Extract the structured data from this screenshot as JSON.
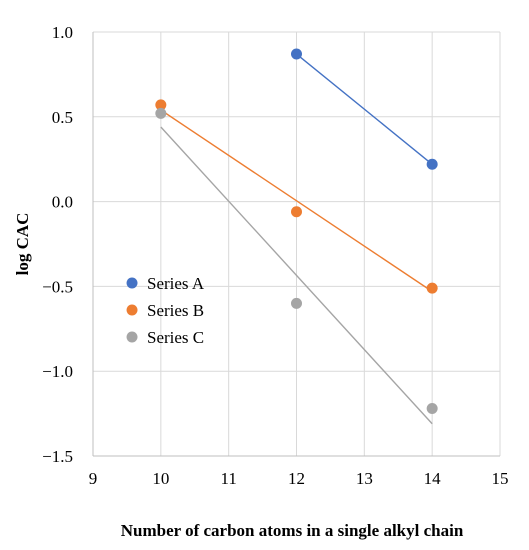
{
  "chart_data": {
    "type": "scatter",
    "xlabel": "Number of carbon atoms in a single alkyl chain",
    "ylabel": "log CAC",
    "xlim": [
      9,
      15
    ],
    "ylim": [
      -1.5,
      1.0
    ],
    "xticks": [
      9,
      10,
      11,
      12,
      13,
      14,
      15
    ],
    "yticks": [
      1.0,
      0.5,
      0.0,
      -0.5,
      -1.0,
      -1.5
    ],
    "xtick_labels": [
      "9",
      "10",
      "11",
      "12",
      "13",
      "14",
      "15"
    ],
    "ytick_labels": [
      "1.0",
      "0.5",
      "0.0",
      "−0.5",
      "−1.0",
      "−1.5"
    ],
    "grid": true,
    "legend_position": "left-middle",
    "series": [
      {
        "name": "Series A",
        "color": "#4472C4",
        "points": [
          {
            "x": 12,
            "y": 0.87
          },
          {
            "x": 14,
            "y": 0.22
          }
        ],
        "trendline": [
          {
            "x": 12,
            "y": 0.87
          },
          {
            "x": 14,
            "y": 0.22
          }
        ]
      },
      {
        "name": "Series B",
        "color": "#ED7D31",
        "points": [
          {
            "x": 10,
            "y": 0.57
          },
          {
            "x": 12,
            "y": -0.06
          },
          {
            "x": 14,
            "y": -0.51
          }
        ],
        "trendline": [
          {
            "x": 10,
            "y": 0.54
          },
          {
            "x": 14,
            "y": -0.53
          }
        ]
      },
      {
        "name": "Series C",
        "color": "#A5A5A5",
        "points": [
          {
            "x": 10,
            "y": 0.52
          },
          {
            "x": 12,
            "y": -0.6
          },
          {
            "x": 14,
            "y": -1.22
          }
        ],
        "trendline": [
          {
            "x": 10,
            "y": 0.44
          },
          {
            "x": 14,
            "y": -1.31
          }
        ]
      }
    ]
  }
}
